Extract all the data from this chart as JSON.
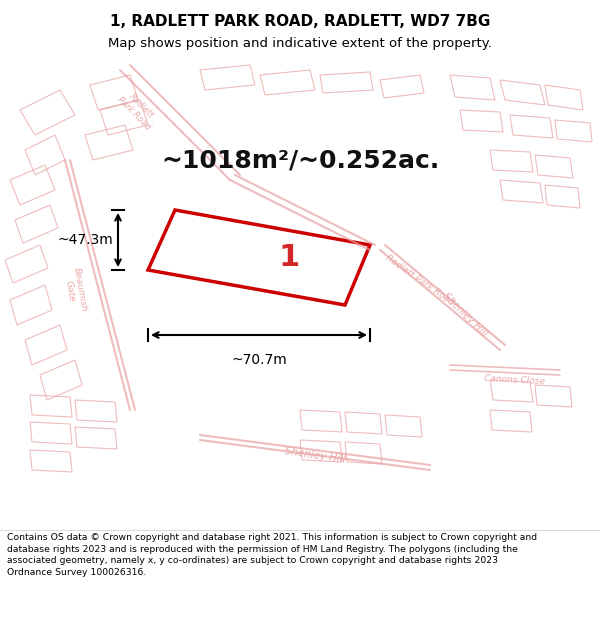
{
  "title": "1, RADLETT PARK ROAD, RADLETT, WD7 7BG",
  "subtitle": "Map shows position and indicative extent of the property.",
  "area_text": "~1018m²/~0.252ac.",
  "dim_width": "~70.7m",
  "dim_height": "~47.3m",
  "plot_number": "1",
  "footer_text": "Contains OS data © Crown copyright and database right 2021. This information is subject to Crown copyright and database rights 2023 and is reproduced with the permission of HM Land Registry. The polygons (including the associated geometry, namely x, y co-ordinates) are subject to Crown copyright and database rights 2023 Ordnance Survey 100026316.",
  "bg_color": "#f0eeee",
  "map_bg": "#f5f5f5",
  "highlight_color": "#cc0000",
  "light_lines_color": "#e8a0a0",
  "title_color": "#000000",
  "footer_color": "#000000"
}
